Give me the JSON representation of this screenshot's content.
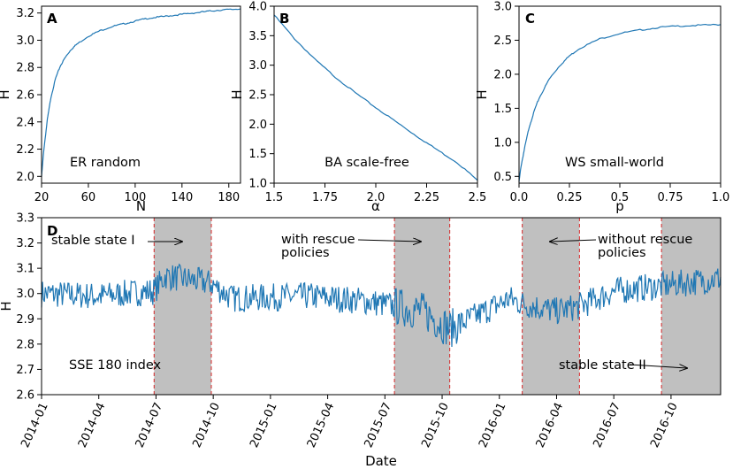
{
  "colors": {
    "line": "#1f77b4",
    "shade": "#c0c0c0",
    "divider": "#d62728"
  },
  "chart_data": [
    {
      "type": "line",
      "panel": "A",
      "xlabel": "N",
      "ylabel": "H",
      "xlim": [
        20,
        190
      ],
      "ylim": [
        1.95,
        3.25
      ],
      "xticks": [
        20,
        60,
        100,
        140,
        180
      ],
      "yticks": [
        2.0,
        2.2,
        2.4,
        2.6,
        2.8,
        3.0,
        3.2
      ],
      "ytick_labels": [
        "2.0",
        "2.2",
        "2.4",
        "2.6",
        "2.8",
        "3.0",
        "3.2"
      ],
      "annotation": "ER random",
      "x": [
        20,
        22,
        25,
        28,
        32,
        36,
        40,
        45,
        50,
        60,
        70,
        80,
        90,
        100,
        110,
        120,
        130,
        140,
        150,
        160,
        170,
        180,
        190
      ],
      "y": [
        2.0,
        2.2,
        2.42,
        2.58,
        2.72,
        2.81,
        2.87,
        2.93,
        2.97,
        3.03,
        3.07,
        3.1,
        3.12,
        3.14,
        3.16,
        3.17,
        3.18,
        3.19,
        3.2,
        3.21,
        3.22,
        3.225,
        3.23
      ]
    },
    {
      "type": "line",
      "panel": "B",
      "xlabel": "α",
      "ylabel": "H",
      "xlim": [
        1.5,
        2.5
      ],
      "ylim": [
        1.0,
        4.0
      ],
      "xticks": [
        1.5,
        1.75,
        2.0,
        2.25,
        2.5
      ],
      "xtick_labels": [
        "1.5",
        "1.75",
        "2.0",
        "2.25",
        "2.5"
      ],
      "yticks": [
        1.0,
        1.5,
        2.0,
        2.5,
        3.0,
        3.5,
        4.0
      ],
      "ytick_labels": [
        "1.0",
        "1.5",
        "2.0",
        "2.5",
        "3.0",
        "3.5",
        "4.0"
      ],
      "annotation": "BA scale-free",
      "x": [
        1.5,
        1.6,
        1.7,
        1.8,
        1.9,
        2.0,
        2.1,
        2.2,
        2.3,
        2.4,
        2.5
      ],
      "y": [
        3.85,
        3.45,
        3.1,
        2.8,
        2.53,
        2.28,
        2.04,
        1.8,
        1.57,
        1.35,
        1.05
      ]
    },
    {
      "type": "line",
      "panel": "C",
      "xlabel": "p",
      "ylabel": "H",
      "xlim": [
        0.0,
        1.0
      ],
      "ylim": [
        0.4,
        3.0
      ],
      "xticks": [
        0.0,
        0.25,
        0.5,
        0.75,
        1.0
      ],
      "xtick_labels": [
        "0.0",
        "0.25",
        "0.5",
        "0.75",
        "1.0"
      ],
      "yticks": [
        0.5,
        1.0,
        1.5,
        2.0,
        2.5,
        3.0
      ],
      "ytick_labels": [
        "0.5",
        "1.0",
        "1.5",
        "2.0",
        "2.5",
        "3.0"
      ],
      "annotation": "WS small-world",
      "x": [
        0.0,
        0.01,
        0.03,
        0.05,
        0.08,
        0.1,
        0.15,
        0.2,
        0.25,
        0.3,
        0.4,
        0.5,
        0.6,
        0.7,
        0.8,
        0.9,
        1.0
      ],
      "y": [
        0.42,
        0.65,
        0.95,
        1.22,
        1.5,
        1.65,
        1.93,
        2.12,
        2.27,
        2.38,
        2.52,
        2.6,
        2.65,
        2.69,
        2.71,
        2.72,
        2.73
      ]
    },
    {
      "type": "line",
      "panel": "D",
      "xlabel": "Date",
      "ylabel": "H",
      "xlim": [
        0,
        35.6
      ],
      "ylim": [
        2.6,
        3.3
      ],
      "x_unit": "months since 2014-01",
      "xticks": [
        0,
        3,
        6,
        9,
        12,
        15,
        18,
        21,
        24,
        27,
        30,
        33
      ],
      "xtick_labels": [
        "2014-01",
        "2014-04",
        "2014-07",
        "2014-10",
        "2015-01",
        "2015-04",
        "2015-07",
        "2015-10",
        "2016-01",
        "2016-04",
        "2016-07",
        "2016-10"
      ],
      "yticks": [
        2.6,
        2.7,
        2.8,
        2.9,
        3.0,
        3.1,
        3.2,
        3.3
      ],
      "ytick_labels": [
        "2.6",
        "2.7",
        "2.8",
        "2.9",
        "3.0",
        "3.1",
        "3.2",
        "3.3"
      ],
      "shaded_regions": [
        [
          5.9,
          8.9
        ],
        [
          18.5,
          21.4
        ],
        [
          25.2,
          28.2
        ],
        [
          32.5,
          35.6
        ]
      ],
      "annotations": {
        "stable_state_1": "stable state I",
        "with_rescue": [
          "with rescue",
          "policies"
        ],
        "without_rescue": [
          "without rescue",
          "policies"
        ],
        "stable_state_2": "stable state II",
        "index": "SSE 180 index"
      },
      "trend": [
        [
          0,
          3.0
        ],
        [
          3,
          2.99
        ],
        [
          5.9,
          3.01
        ],
        [
          6.5,
          3.07
        ],
        [
          8.9,
          3.04
        ],
        [
          10,
          2.98
        ],
        [
          14,
          2.99
        ],
        [
          17,
          2.97
        ],
        [
          18.5,
          2.95
        ],
        [
          20,
          2.93
        ],
        [
          21.4,
          2.86
        ],
        [
          23,
          2.92
        ],
        [
          24.5,
          2.98
        ],
        [
          25.2,
          2.96
        ],
        [
          27,
          2.93
        ],
        [
          28.2,
          2.95
        ],
        [
          30,
          3.01
        ],
        [
          32.5,
          3.03
        ],
        [
          35.6,
          3.06
        ]
      ],
      "noise_amplitude": 0.055
    }
  ]
}
